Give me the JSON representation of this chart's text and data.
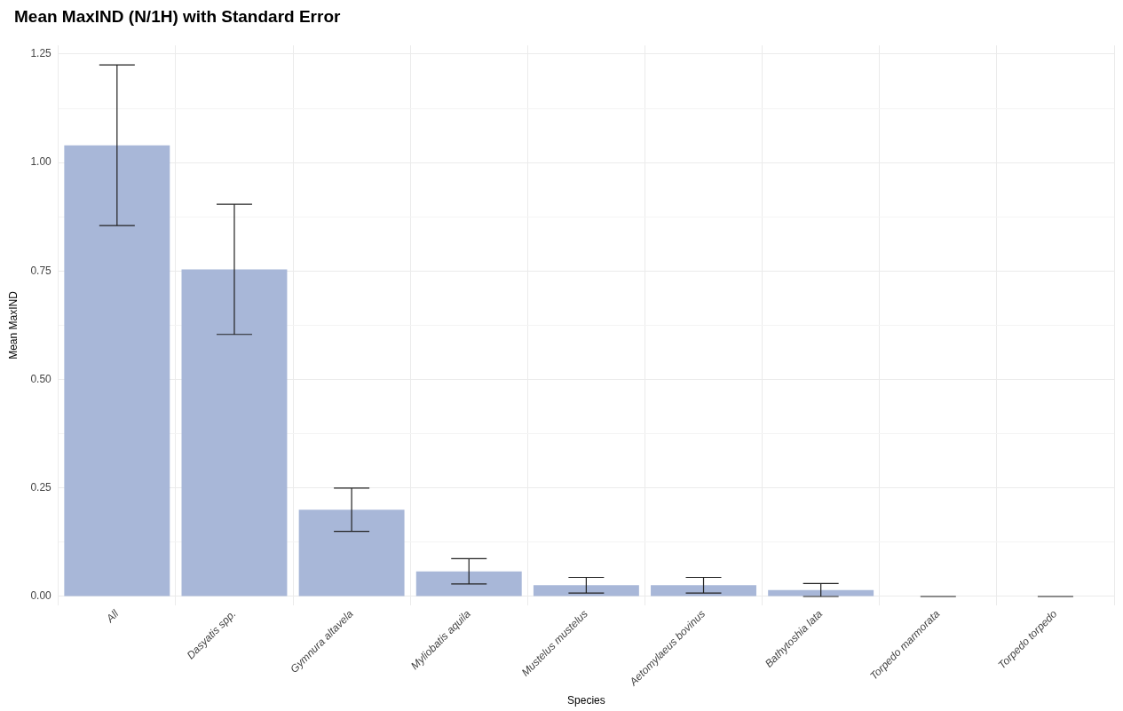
{
  "chart_data": {
    "type": "bar",
    "title": "Mean MaxIND (N/1H) with Standard Error",
    "xlabel": "Species",
    "ylabel": "Mean MaxIND",
    "categories": [
      "All",
      "Dasyatis spp.",
      "Gymnura altavela",
      "Myliobatis aquila",
      "Mustelus mustelus",
      "Aetomylaeus bovinus",
      "Bathytoshia lata",
      "Torpedo marmorata",
      "Torpedo torpedo"
    ],
    "values": [
      1.04,
      0.754,
      0.2,
      0.058,
      0.026,
      0.026,
      0.015,
      0,
      0
    ],
    "errors": [
      0.185,
      0.15,
      0.05,
      0.029,
      0.018,
      0.018,
      0.015,
      0,
      0
    ],
    "color": "#a8b7d8",
    "ylim": [
      -0.02,
      1.27
    ],
    "yticks": [
      {
        "value": 0,
        "label": "0.00"
      },
      {
        "value": 0.125,
        "label": null
      },
      {
        "value": 0.25,
        "label": "0.25"
      },
      {
        "value": 0.375,
        "label": null
      },
      {
        "value": 0.5,
        "label": "0.50"
      },
      {
        "value": 0.625,
        "label": null
      },
      {
        "value": 0.75,
        "label": "0.75"
      },
      {
        "value": 0.875,
        "label": null
      },
      {
        "value": 1,
        "label": "1.00"
      },
      {
        "value": 1.125,
        "label": null
      },
      {
        "value": 1.25,
        "label": "1.25"
      }
    ],
    "grid": true
  }
}
